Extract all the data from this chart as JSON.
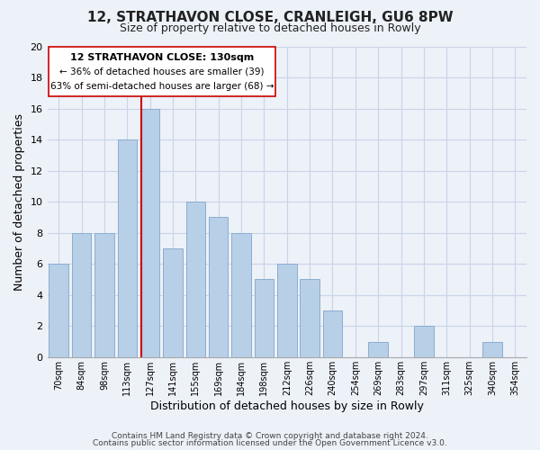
{
  "title": "12, STRATHAVON CLOSE, CRANLEIGH, GU6 8PW",
  "subtitle": "Size of property relative to detached houses in Rowly",
  "xlabel": "Distribution of detached houses by size in Rowly",
  "ylabel": "Number of detached properties",
  "bin_labels": [
    "70sqm",
    "84sqm",
    "98sqm",
    "113sqm",
    "127sqm",
    "141sqm",
    "155sqm",
    "169sqm",
    "184sqm",
    "198sqm",
    "212sqm",
    "226sqm",
    "240sqm",
    "254sqm",
    "269sqm",
    "283sqm",
    "297sqm",
    "311sqm",
    "325sqm",
    "340sqm",
    "354sqm"
  ],
  "bar_values": [
    6,
    8,
    8,
    14,
    16,
    7,
    10,
    9,
    8,
    5,
    6,
    5,
    3,
    0,
    1,
    0,
    2,
    0,
    0,
    1,
    0
  ],
  "bar_color": "#b8cfe8",
  "bar_edge_color": "#8aaed0",
  "highlight_bin_index": 4,
  "highlight_color": "#cc0000",
  "ylim": [
    0,
    20
  ],
  "yticks": [
    0,
    2,
    4,
    6,
    8,
    10,
    12,
    14,
    16,
    18,
    20
  ],
  "annotation_title": "12 STRATHAVON CLOSE: 130sqm",
  "annotation_line1": "← 36% of detached houses are smaller (39)",
  "annotation_line2": "63% of semi-detached houses are larger (68) →",
  "footer1": "Contains HM Land Registry data © Crown copyright and database right 2024.",
  "footer2": "Contains public sector information licensed under the Open Government Licence v3.0.",
  "grid_color": "#c8d4e8",
  "background_color": "#edf1f8"
}
